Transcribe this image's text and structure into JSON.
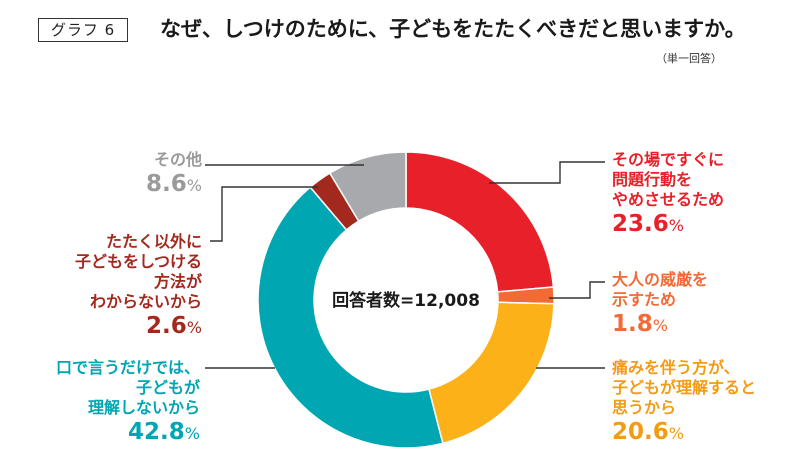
{
  "header": {
    "graph_tag": "グラフ 6",
    "title": "なぜ、しつけのために、子どもをたたくべきだと思いますか。",
    "note": "（単一回答）"
  },
  "chart_data": {
    "type": "pie",
    "donut": true,
    "center_label": "回答者数=12,008",
    "slices": [
      {
        "label": [
          "その場ですぐに",
          "問題行動を",
          "やめさせるため"
        ],
        "value": 23.6,
        "pct": "23.6",
        "color": "#e8202a"
      },
      {
        "label": [
          "大人の威厳を",
          "示すため"
        ],
        "value": 1.8,
        "pct": "1.8",
        "color": "#f26a35"
      },
      {
        "label": [
          "痛みを伴う方が、",
          "子どもが理解すると",
          "思うから"
        ],
        "value": 20.6,
        "pct": "20.6",
        "color": "#fbb117"
      },
      {
        "label": [
          "口で言うだけでは、",
          "子どもが",
          "理解しないから"
        ],
        "value": 42.8,
        "pct": "42.8",
        "color": "#00a6b2"
      },
      {
        "label": [
          "たたく以外に",
          "子どもをしつける",
          "方法が",
          "わからないから"
        ],
        "value": 2.6,
        "pct": "2.6",
        "color": "#a3291e"
      },
      {
        "label": [
          "その他"
        ],
        "value": 8.6,
        "pct": "8.6",
        "color": "#a7a9ac"
      }
    ],
    "label_colors": [
      "#e8202a",
      "#f26a35",
      "#f39c12",
      "#00a6b2",
      "#a3291e",
      "#9a9a9a"
    ],
    "unit": "%"
  }
}
